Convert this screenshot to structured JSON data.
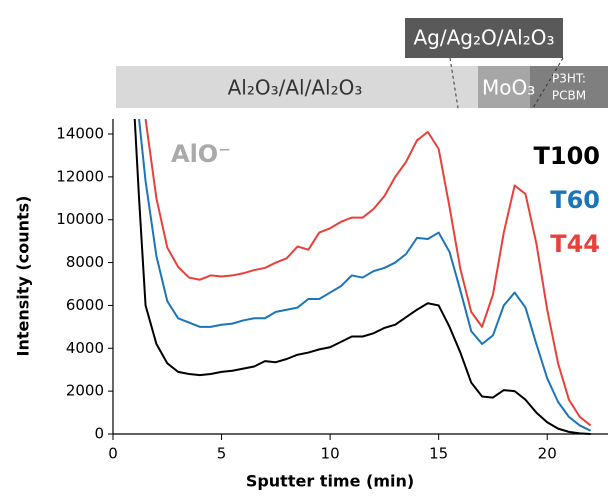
{
  "chart_data": {
    "type": "line",
    "x_label": "Sputter time (min)",
    "y_label": "Intensity (counts)",
    "annotations": [
      "AlO⁻"
    ],
    "layers": [
      "Al₂O₃/Al/Al₂O₃",
      "MoO₃",
      "P3HT:",
      "PCBM",
      "Ag/Ag₂O/Al₂O₃"
    ],
    "x": [
      1.0,
      1.2,
      1.5,
      2,
      2.5,
      3,
      3.5,
      4,
      4.5,
      5,
      5.5,
      6,
      6.5,
      7,
      7.5,
      8,
      8.5,
      9,
      9.5,
      10,
      10.5,
      11,
      11.5,
      12,
      12.5,
      13,
      13.5,
      14,
      14.5,
      15,
      15.5,
      16,
      16.5,
      17,
      17.5,
      18,
      18.5,
      19,
      19.5,
      20,
      20.5,
      21,
      21.5,
      22
    ],
    "series": [
      {
        "name": "T100",
        "color": "#000000",
        "values": [
          14700,
          11000,
          6000,
          4200,
          3300,
          2900,
          2800,
          2750,
          2800,
          2900,
          2950,
          3050,
          3150,
          3400,
          3350,
          3500,
          3700,
          3800,
          3950,
          4050,
          4300,
          4550,
          4550,
          4700,
          4950,
          5100,
          5450,
          5800,
          6100,
          6000,
          5000,
          3800,
          2400,
          1750,
          1700,
          2050,
          2000,
          1600,
          1000,
          550,
          250,
          100,
          30,
          0
        ]
      },
      {
        "name": "T60",
        "color": "#1a75bb",
        "values": [
          null,
          14700,
          11800,
          8300,
          6200,
          5400,
          5200,
          5000,
          5000,
          5100,
          5150,
          5300,
          5400,
          5400,
          5700,
          5800,
          5900,
          6300,
          6300,
          6600,
          6900,
          7400,
          7300,
          7600,
          7750,
          8000,
          8400,
          9150,
          9100,
          9400,
          8500,
          6700,
          4800,
          4200,
          4600,
          6000,
          6600,
          5900,
          4200,
          2600,
          1500,
          800,
          400,
          150
        ]
      },
      {
        "name": "T44",
        "color": "#e8403a",
        "values": [
          null,
          null,
          14700,
          11000,
          8700,
          7800,
          7300,
          7200,
          7400,
          7350,
          7400,
          7500,
          7650,
          7750,
          8000,
          8200,
          8750,
          8600,
          9400,
          9600,
          9900,
          10100,
          10100,
          10500,
          11100,
          12000,
          12700,
          13700,
          14100,
          13300,
          10600,
          7700,
          5700,
          5000,
          6500,
          9400,
          11600,
          11200,
          8900,
          5800,
          3300,
          1600,
          800,
          400
        ]
      }
    ],
    "xlim": [
      0,
      22.8
    ],
    "ylim": [
      0,
      14700
    ],
    "xticks": [
      0,
      5,
      10,
      15,
      20
    ],
    "yticks": [
      0,
      2000,
      4000,
      6000,
      8000,
      10000,
      12000,
      14000
    ]
  }
}
